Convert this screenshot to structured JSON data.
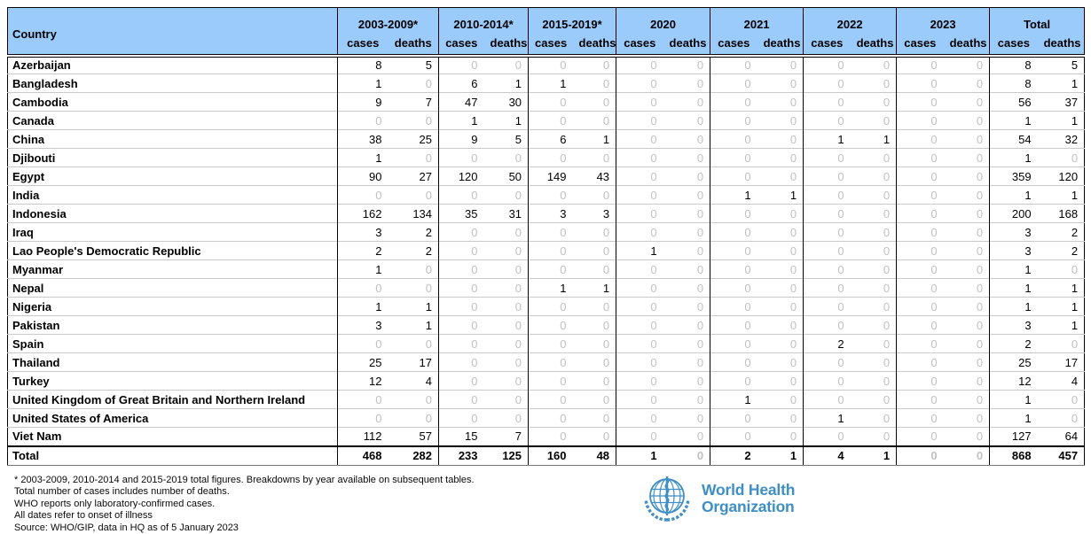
{
  "table": {
    "header": {
      "country_label": "Country",
      "groups": [
        "2003-2009*",
        "2010-2014*",
        "2015-2019*",
        "2020",
        "2021",
        "2022",
        "2023",
        "Total"
      ],
      "sub_labels": [
        "cases",
        "deaths"
      ]
    },
    "rows": [
      {
        "country": "Azerbaijan",
        "values": [
          8,
          5,
          0,
          0,
          0,
          0,
          0,
          0,
          0,
          0,
          0,
          0,
          0,
          0,
          8,
          5
        ]
      },
      {
        "country": "Bangladesh",
        "values": [
          1,
          0,
          6,
          1,
          1,
          0,
          0,
          0,
          0,
          0,
          0,
          0,
          0,
          0,
          8,
          1
        ]
      },
      {
        "country": "Cambodia",
        "values": [
          9,
          7,
          47,
          30,
          0,
          0,
          0,
          0,
          0,
          0,
          0,
          0,
          0,
          0,
          56,
          37
        ]
      },
      {
        "country": "Canada",
        "values": [
          0,
          0,
          1,
          1,
          0,
          0,
          0,
          0,
          0,
          0,
          0,
          0,
          0,
          0,
          1,
          1
        ]
      },
      {
        "country": "China",
        "values": [
          38,
          25,
          9,
          5,
          6,
          1,
          0,
          0,
          0,
          0,
          1,
          1,
          0,
          0,
          54,
          32
        ]
      },
      {
        "country": "Djibouti",
        "values": [
          1,
          0,
          0,
          0,
          0,
          0,
          0,
          0,
          0,
          0,
          0,
          0,
          0,
          0,
          1,
          0
        ]
      },
      {
        "country": "Egypt",
        "values": [
          90,
          27,
          120,
          50,
          149,
          43,
          0,
          0,
          0,
          0,
          0,
          0,
          0,
          0,
          359,
          120
        ]
      },
      {
        "country": "India",
        "values": [
          0,
          0,
          0,
          0,
          0,
          0,
          0,
          0,
          1,
          1,
          0,
          0,
          0,
          0,
          1,
          1
        ]
      },
      {
        "country": "Indonesia",
        "values": [
          162,
          134,
          35,
          31,
          3,
          3,
          0,
          0,
          0,
          0,
          0,
          0,
          0,
          0,
          200,
          168
        ]
      },
      {
        "country": "Iraq",
        "values": [
          3,
          2,
          0,
          0,
          0,
          0,
          0,
          0,
          0,
          0,
          0,
          0,
          0,
          0,
          3,
          2
        ]
      },
      {
        "country": "Lao People's Democratic Republic",
        "values": [
          2,
          2,
          0,
          0,
          0,
          0,
          1,
          0,
          0,
          0,
          0,
          0,
          0,
          0,
          3,
          2
        ]
      },
      {
        "country": "Myanmar",
        "values": [
          1,
          0,
          0,
          0,
          0,
          0,
          0,
          0,
          0,
          0,
          0,
          0,
          0,
          0,
          1,
          0
        ]
      },
      {
        "country": "Nepal",
        "values": [
          0,
          0,
          0,
          0,
          1,
          1,
          0,
          0,
          0,
          0,
          0,
          0,
          0,
          0,
          1,
          1
        ]
      },
      {
        "country": "Nigeria",
        "values": [
          1,
          1,
          0,
          0,
          0,
          0,
          0,
          0,
          0,
          0,
          0,
          0,
          0,
          0,
          1,
          1
        ]
      },
      {
        "country": "Pakistan",
        "values": [
          3,
          1,
          0,
          0,
          0,
          0,
          0,
          0,
          0,
          0,
          0,
          0,
          0,
          0,
          3,
          1
        ]
      },
      {
        "country": "Spain",
        "values": [
          0,
          0,
          0,
          0,
          0,
          0,
          0,
          0,
          0,
          0,
          2,
          0,
          0,
          0,
          2,
          0
        ]
      },
      {
        "country": "Thailand",
        "values": [
          25,
          17,
          0,
          0,
          0,
          0,
          0,
          0,
          0,
          0,
          0,
          0,
          0,
          0,
          25,
          17
        ]
      },
      {
        "country": "Turkey",
        "values": [
          12,
          4,
          0,
          0,
          0,
          0,
          0,
          0,
          0,
          0,
          0,
          0,
          0,
          0,
          12,
          4
        ]
      },
      {
        "country": "United Kingdom of Great Britain and Northern Ireland",
        "values": [
          0,
          0,
          0,
          0,
          0,
          0,
          0,
          0,
          1,
          0,
          0,
          0,
          0,
          0,
          1,
          0
        ]
      },
      {
        "country": "United States of America",
        "values": [
          0,
          0,
          0,
          0,
          0,
          0,
          0,
          0,
          0,
          0,
          1,
          0,
          0,
          0,
          1,
          0
        ]
      },
      {
        "country": "Viet Nam",
        "values": [
          112,
          57,
          15,
          7,
          0,
          0,
          0,
          0,
          0,
          0,
          0,
          0,
          0,
          0,
          127,
          64
        ]
      }
    ],
    "total_row": {
      "country": "Total",
      "values": [
        468,
        282,
        233,
        125,
        160,
        48,
        1,
        0,
        2,
        1,
        4,
        1,
        0,
        0,
        868,
        457
      ]
    }
  },
  "footnotes": [
    "* 2003-2009, 2010-2014 and 2015-2019 total figures. Breakdowns by year available on subsequent tables.",
    "Total number of cases includes number of deaths.",
    "WHO reports only laboratory-confirmed cases.",
    "All dates refer to onset of illness",
    "Source: WHO/GIP, data in HQ as of 5 January 2023"
  ],
  "logo": {
    "name": "World Health Organization",
    "line1": "World Health",
    "line2": "Organization"
  },
  "colors": {
    "header_bg": "#9bcbfb",
    "zero_text": "#c1c1c1",
    "grid_line": "#c9c9c9",
    "border": "#000000",
    "who_blue": "#3e8ec7"
  }
}
